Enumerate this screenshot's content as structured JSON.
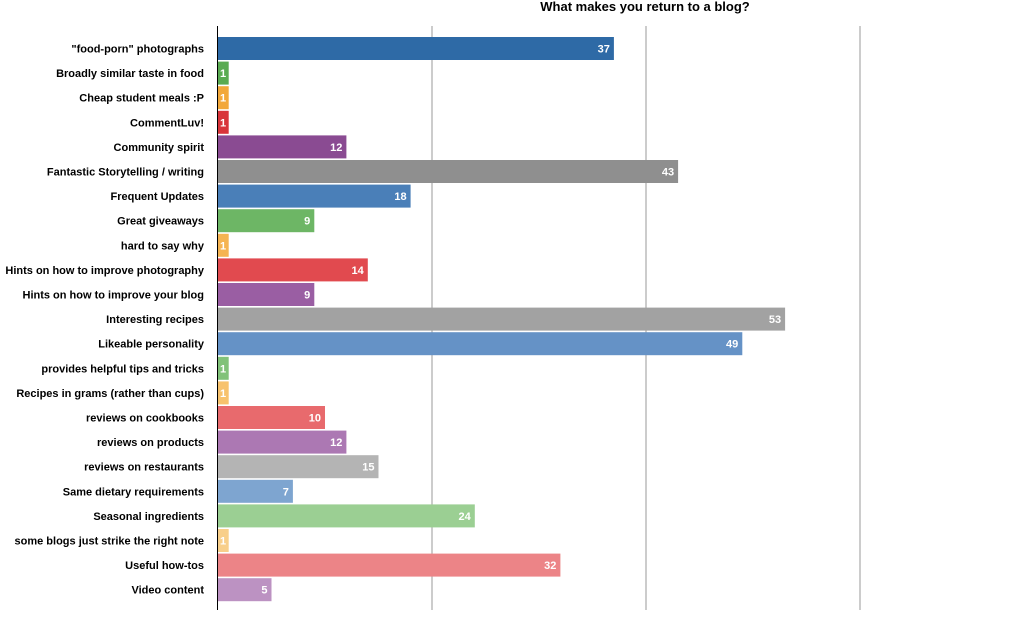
{
  "chart_data": {
    "type": "bar",
    "orientation": "horizontal",
    "title": "What makes you return to a blog?",
    "xlabel": "",
    "ylabel": "",
    "xlim": [
      0,
      60
    ],
    "grid": true,
    "legend": "none",
    "categories": [
      "\"food-porn\" photographs",
      "Broadly similar taste in food",
      "Cheap student meals :P",
      "CommentLuv!",
      "Community spirit",
      "Fantastic Storytelling / writing",
      "Frequent Updates",
      "Great giveaways",
      "hard to say why",
      "Hints on how to improve photography",
      "Hints on how to improve your blog",
      "Interesting recipes",
      "Likeable personality",
      "provides helpful tips and tricks",
      "Recipes in grams (rather than cups)",
      "reviews on cookbooks",
      "reviews on products",
      "reviews on restaurants",
      "Same dietary requirements",
      "Seasonal ingredients",
      "some blogs just strike the right note",
      "Useful how-tos",
      "Video content"
    ],
    "values": [
      37,
      1,
      1,
      1,
      12,
      43,
      18,
      9,
      1,
      14,
      9,
      53,
      49,
      1,
      1,
      10,
      12,
      15,
      7,
      24,
      1,
      32,
      5
    ],
    "colors": [
      "#2e6aa6",
      "#5aab52",
      "#f2a83a",
      "#d8343a",
      "#8a4b92",
      "#8f8f8f",
      "#4a7fb8",
      "#6db665",
      "#f5b452",
      "#e14a4f",
      "#9a5ea3",
      "#a2a2a2",
      "#6592c6",
      "#81c279",
      "#f7c26d",
      "#e86a6d",
      "#ac78b3",
      "#b4b4b4",
      "#7ea5d0",
      "#9bcf93",
      "#f8cf8a",
      "#ec8487",
      "#bc92c2"
    ]
  }
}
